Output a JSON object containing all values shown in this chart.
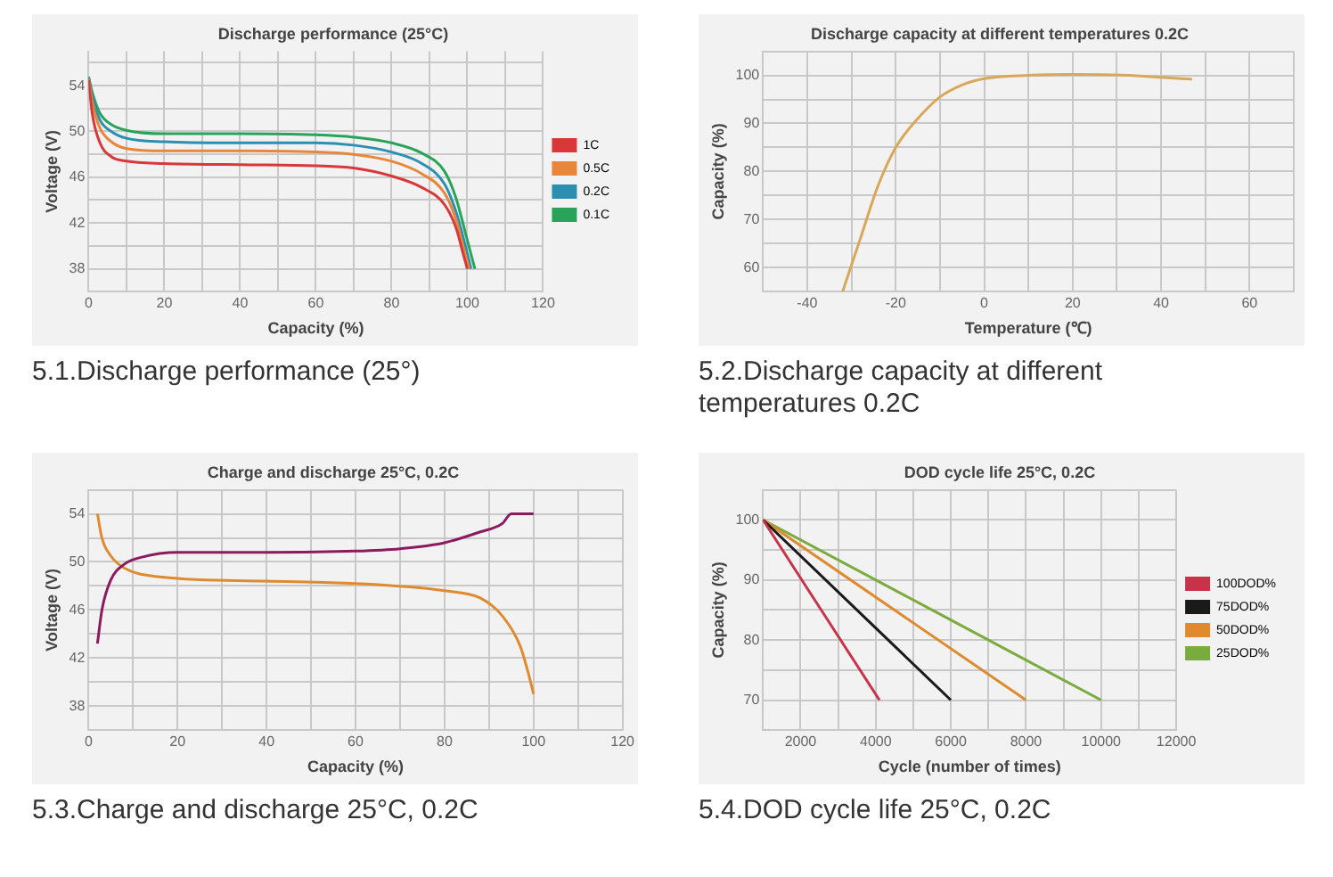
{
  "chart_data": [
    {
      "type": "line",
      "title": "Discharge performance (25°C)",
      "xlabel": "Capacity (%)",
      "ylabel": "Voltage (V)",
      "xlim": [
        0,
        120
      ],
      "ylim": [
        36,
        57
      ],
      "xticks": [
        0,
        {
          "value": 10,
          "label": null
        },
        20,
        {
          "value": 30,
          "label": null
        },
        40,
        {
          "value": 50,
          "label": null
        },
        60,
        {
          "value": 70,
          "label": null
        },
        80,
        {
          "value": 90,
          "label": null
        },
        100,
        {
          "value": 110,
          "label": null
        },
        120
      ],
      "yticks": [
        {
          "value": 36,
          "label": null
        },
        38,
        {
          "value": 40,
          "label": null
        },
        42,
        {
          "value": 44,
          "label": null
        },
        46,
        {
          "value": 48,
          "label": null
        },
        50,
        {
          "value": 52,
          "label": null
        },
        54,
        {
          "value": 56,
          "label": null
        }
      ],
      "grid": true,
      "legend": "right",
      "marker": "none",
      "annotations": [
        "5.1.Discharge performance (25°)"
      ],
      "series": [
        {
          "name": "1C",
          "color": "#d9383a",
          "x": [
            0,
            1,
            3,
            6,
            10,
            20,
            40,
            60,
            70,
            80,
            88,
            94,
            97,
            99,
            100
          ],
          "values": [
            54.5,
            51.5,
            49,
            47.8,
            47.4,
            47.2,
            47.1,
            47,
            46.8,
            46.1,
            45.1,
            43.6,
            41.6,
            39.2,
            38
          ]
        },
        {
          "name": "0.5C",
          "color": "#e8873a",
          "x": [
            0,
            1,
            3,
            6,
            10,
            20,
            40,
            60,
            70,
            80,
            88,
            94,
            97,
            99,
            100.5
          ],
          "values": [
            54.6,
            52.5,
            50.3,
            49.1,
            48.5,
            48.3,
            48.3,
            48.2,
            48,
            47.4,
            46.3,
            44.6,
            42.3,
            39.8,
            38
          ]
        },
        {
          "name": "0.2C",
          "color": "#2a8fb0",
          "x": [
            0,
            1,
            3,
            6,
            10,
            20,
            40,
            60,
            70,
            80,
            88,
            94,
            97,
            99.5,
            101
          ],
          "values": [
            54.7,
            53,
            51,
            50,
            49.4,
            49.1,
            49,
            49,
            48.8,
            48.2,
            47.2,
            45.4,
            43,
            40,
            38
          ]
        },
        {
          "name": "0.1C",
          "color": "#2aa35a",
          "x": [
            0,
            1,
            3,
            6,
            10,
            20,
            40,
            60,
            70,
            80,
            88,
            94,
            97,
            100,
            102
          ],
          "values": [
            54.8,
            53.4,
            51.6,
            50.6,
            50.1,
            49.8,
            49.8,
            49.7,
            49.5,
            49,
            48.1,
            46.5,
            44.2,
            40.5,
            38
          ]
        }
      ]
    },
    {
      "type": "line",
      "title": "Discharge capacity at different temperatures 0.2C",
      "xlabel": "Temperature (℃)",
      "ylabel": "Capacity (%)",
      "xlim": [
        -50,
        70
      ],
      "ylim": [
        55,
        105
      ],
      "xticks": [
        {
          "value": -50,
          "label": null
        },
        -40,
        {
          "value": -30,
          "label": null
        },
        -20,
        {
          "value": -10,
          "label": null
        },
        0,
        {
          "value": 10,
          "label": null
        },
        20,
        {
          "value": 30,
          "label": null
        },
        40,
        {
          "value": 50,
          "label": null
        },
        60,
        {
          "value": 70,
          "label": null
        }
      ],
      "yticks": [
        {
          "value": 55,
          "label": null
        },
        60,
        {
          "value": 65,
          "label": null
        },
        70,
        {
          "value": 75,
          "label": null
        },
        80,
        {
          "value": 85,
          "label": null
        },
        90,
        {
          "value": 95,
          "label": null
        },
        100,
        {
          "value": 105,
          "label": null
        }
      ],
      "grid": true,
      "marker": "none",
      "annotations": [
        "5.2.Discharge capacity at different temperatures 0.2C"
      ],
      "series": [
        {
          "color": "#d8a75a",
          "x": [
            -32,
            -28,
            -24,
            -20,
            -15,
            -10,
            -5,
            0,
            10,
            20,
            30,
            40,
            47
          ],
          "values": [
            55,
            66,
            77,
            85,
            91,
            95.5,
            98,
            99.3,
            100,
            100.2,
            100.1,
            99.6,
            99.2
          ]
        }
      ]
    },
    {
      "type": "line",
      "title": "Charge and discharge 25°C, 0.2C",
      "xlabel": "Capacity (%)",
      "ylabel": "Voltage (V)",
      "xlim": [
        0,
        120
      ],
      "ylim": [
        36,
        56
      ],
      "xticks": [
        0,
        {
          "value": 10,
          "label": null
        },
        20,
        {
          "value": 30,
          "label": null
        },
        40,
        {
          "value": 50,
          "label": null
        },
        60,
        {
          "value": 70,
          "label": null
        },
        80,
        {
          "value": 90,
          "label": null
        },
        100,
        {
          "value": 110,
          "label": null
        },
        120
      ],
      "yticks": [
        {
          "value": 36,
          "label": null
        },
        38,
        {
          "value": 40,
          "label": null
        },
        42,
        {
          "value": 44,
          "label": null
        },
        46,
        {
          "value": 48,
          "label": null
        },
        50,
        {
          "value": 52,
          "label": null
        },
        54,
        {
          "value": 56,
          "label": null
        }
      ],
      "grid": true,
      "marker": "none",
      "annotations": [
        "5.3.Charge and discharge 25°C, 0.2C"
      ],
      "series": [
        {
          "color": "#8b1a5e",
          "x": [
            2,
            3,
            5,
            8,
            12,
            20,
            40,
            60,
            70,
            80,
            88,
            93,
            95,
            100
          ],
          "values": [
            43.2,
            46,
            48.5,
            49.8,
            50.4,
            50.8,
            50.8,
            50.9,
            51.1,
            51.6,
            52.5,
            53.2,
            54,
            54
          ]
        },
        {
          "color": "#e08a30",
          "x": [
            2,
            3,
            5,
            8,
            15,
            40,
            60,
            80,
            88,
            93,
            97,
            99,
            100
          ],
          "values": [
            54,
            52,
            50.5,
            49.5,
            48.8,
            48.4,
            48.2,
            47.6,
            47,
            45.5,
            43,
            40.5,
            39
          ]
        }
      ]
    },
    {
      "type": "line",
      "title": "DOD cycle life 25°C, 0.2C",
      "xlabel": "Cycle (number of times)",
      "ylabel": "Capacity (%)",
      "xlim": [
        1000,
        12000
      ],
      "ylim": [
        65,
        105
      ],
      "xticks": [
        {
          "value": 1000,
          "label": null
        },
        2000,
        {
          "value": 3000,
          "label": null
        },
        4000,
        {
          "value": 5000,
          "label": null
        },
        6000,
        {
          "value": 7000,
          "label": null
        },
        8000,
        {
          "value": 9000,
          "label": null
        },
        10000,
        {
          "value": 11000,
          "label": null
        },
        12000
      ],
      "yticks": [
        {
          "value": 65,
          "label": null
        },
        70,
        {
          "value": 75,
          "label": null
        },
        80,
        {
          "value": 85,
          "label": null
        },
        90,
        {
          "value": 95,
          "label": null
        },
        100,
        {
          "value": 105,
          "label": null
        }
      ],
      "grid": true,
      "legend": "right",
      "marker": "none",
      "annotations": [
        "5.4.DOD cycle life 25°C, 0.2C"
      ],
      "series": [
        {
          "name": "100DOD%",
          "color": "#c8334a",
          "x": [
            1000,
            4100
          ],
          "values": [
            100,
            70
          ]
        },
        {
          "name": "75DOD%",
          "color": "#1a1a1a",
          "x": [
            1000,
            6000
          ],
          "values": [
            100,
            70
          ]
        },
        {
          "name": "50DOD%",
          "color": "#e08a30",
          "x": [
            1000,
            8000
          ],
          "values": [
            100,
            70
          ]
        },
        {
          "name": "25DOD%",
          "color": "#7aab3e",
          "x": [
            1000,
            10000
          ],
          "values": [
            100,
            70
          ]
        }
      ]
    }
  ]
}
